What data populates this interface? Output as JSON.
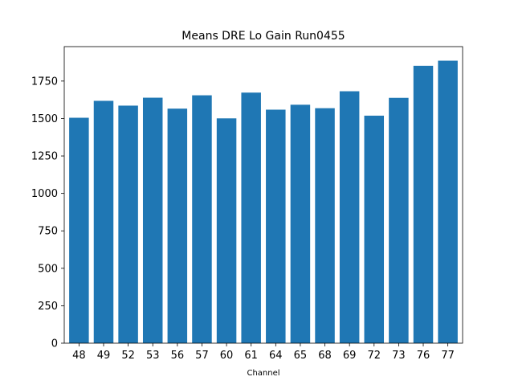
{
  "chart_data": {
    "type": "bar",
    "title": "Means DRE Lo Gain Run0455",
    "xlabel": "Channel",
    "ylabel": "",
    "categories": [
      "48",
      "49",
      "52",
      "53",
      "56",
      "57",
      "60",
      "61",
      "64",
      "65",
      "68",
      "69",
      "72",
      "73",
      "76",
      "77"
    ],
    "values": [
      1505,
      1618,
      1586,
      1639,
      1566,
      1655,
      1501,
      1673,
      1559,
      1592,
      1569,
      1682,
      1519,
      1638,
      1852,
      1886
    ],
    "ylim": [
      0,
      1980
    ],
    "yticks": [
      0,
      250,
      500,
      750,
      1000,
      1250,
      1500,
      1750
    ],
    "ytick_labels": [
      "0",
      "250",
      "500",
      "750",
      "1000",
      "1250",
      "1500",
      "1750"
    ],
    "grid": false,
    "bar_color": "#1f77b4"
  }
}
